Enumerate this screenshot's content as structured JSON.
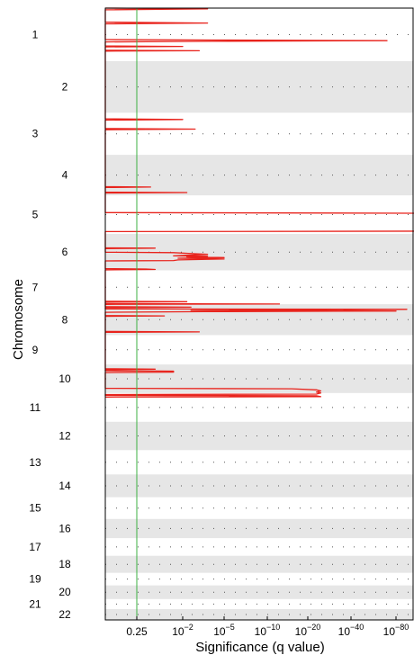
{
  "chart_data": {
    "type": "line",
    "orientation": "horizontal-genome",
    "xlabel": "Significance (q value)",
    "ylabel": "Chromosome",
    "threshold": {
      "value": 0.25,
      "label": "0.25",
      "color": "#3cb043"
    },
    "x_scale": "compressed-log",
    "x_ticks": [
      {
        "label": "0.25",
        "base": "0.25",
        "exp": ""
      },
      {
        "label": "10^-2",
        "base": "10",
        "exp": "−2"
      },
      {
        "label": "10^-5",
        "base": "10",
        "exp": "−5"
      },
      {
        "label": "10^-10",
        "base": "10",
        "exp": "−10"
      },
      {
        "label": "10^-20",
        "base": "10",
        "exp": "−20"
      },
      {
        "label": "10^-40",
        "base": "10",
        "exp": "−40"
      },
      {
        "label": "10^-80",
        "base": "10",
        "exp": "−80"
      }
    ],
    "chromosomes": [
      {
        "label": "1",
        "size": 24.9
      },
      {
        "label": "2",
        "size": 24.2
      },
      {
        "label": "3",
        "size": 19.8
      },
      {
        "label": "4",
        "size": 19.0
      },
      {
        "label": "5",
        "size": 18.1
      },
      {
        "label": "6",
        "size": 17.1
      },
      {
        "label": "7",
        "size": 15.9
      },
      {
        "label": "8",
        "size": 14.5
      },
      {
        "label": "9",
        "size": 13.8
      },
      {
        "label": "10",
        "size": 13.4
      },
      {
        "label": "11",
        "size": 13.5
      },
      {
        "label": "12",
        "size": 13.3
      },
      {
        "label": "13",
        "size": 11.4
      },
      {
        "label": "14",
        "size": 10.7
      },
      {
        "label": "15",
        "size": 10.2
      },
      {
        "label": "16",
        "size": 9.0
      },
      {
        "label": "17",
        "size": 8.3
      },
      {
        "label": "18",
        "size": 8.0
      },
      {
        "label": "19",
        "size": 5.9
      },
      {
        "label": "20",
        "size": 6.4
      },
      {
        "label": "21",
        "size": 4.7
      },
      {
        "label": "22",
        "size": 5.1
      }
    ],
    "series": [
      {
        "color": "#e8231c",
        "points": [
          [
            0,
            0.0
          ],
          [
            1.6,
            0.4
          ],
          [
            0,
            0.8
          ],
          [
            0,
            6.6
          ],
          [
            1.6,
            7.0
          ],
          [
            0,
            7.4
          ],
          [
            0,
            14.8
          ],
          [
            1.7,
            15.0
          ],
          [
            5.8,
            15.3
          ],
          [
            1.7,
            15.6
          ],
          [
            0,
            15.9
          ],
          [
            0,
            17.8
          ],
          [
            1.0,
            18.0
          ],
          [
            0,
            18.2
          ],
          [
            0,
            19.8
          ],
          [
            1.4,
            20.0
          ],
          [
            0,
            20.2
          ],
          [
            0,
            52.0
          ],
          [
            1.0,
            52.3
          ],
          [
            0,
            52.6
          ],
          [
            0,
            56.5
          ],
          [
            1.3,
            56.8
          ],
          [
            0,
            57.1
          ],
          [
            0,
            83.8
          ],
          [
            0.3,
            84.0
          ],
          [
            0,
            84.2
          ],
          [
            0,
            86.4
          ],
          [
            1.1,
            86.6
          ],
          [
            0,
            86.8
          ],
          [
            0,
            96.0
          ],
          [
            6.9,
            96.3
          ],
          [
            7.1,
            97.0
          ],
          [
            7.0,
            97.4
          ],
          [
            7.25,
            98.0
          ],
          [
            7.2,
            98.7
          ],
          [
            7.3,
            99.3
          ],
          [
            9.9,
            99.6
          ],
          [
            7.4,
            100.1
          ],
          [
            7.3,
            100.8
          ],
          [
            7.25,
            101.6
          ],
          [
            7.3,
            102.4
          ],
          [
            7.2,
            103.2
          ],
          [
            7.25,
            104.0
          ],
          [
            7.2,
            104.7
          ],
          [
            0,
            104.9
          ],
          [
            0,
            112.5
          ],
          [
            0.4,
            112.7
          ],
          [
            0,
            112.9
          ],
          [
            0,
            114.6
          ],
          [
            0.8,
            114.8
          ],
          [
            1.3,
            115.3
          ],
          [
            1.6,
            115.6
          ],
          [
            1.1,
            116.0
          ],
          [
            0.8,
            116.3
          ],
          [
            1.6,
            116.5
          ],
          [
            1.1,
            116.8
          ],
          [
            2.0,
            117.1
          ],
          [
            0.9,
            117.4
          ],
          [
            2.0,
            117.8
          ],
          [
            0.9,
            118.2
          ],
          [
            0.8,
            118.5
          ],
          [
            0,
            118.7
          ],
          [
            0,
            122.3
          ],
          [
            0.2,
            122.5
          ],
          [
            0.4,
            122.7
          ],
          [
            0,
            122.9
          ],
          [
            0,
            137.6
          ],
          [
            1.1,
            137.8
          ],
          [
            0,
            138.0
          ],
          [
            0,
            138.7
          ],
          [
            3.3,
            138.9
          ],
          [
            0,
            139.1
          ],
          [
            0,
            140.2
          ],
          [
            1.2,
            140.4
          ],
          [
            0,
            140.6
          ],
          [
            0,
            141.2
          ],
          [
            6.3,
            141.4
          ],
          [
            3.4,
            141.7
          ],
          [
            1.2,
            141.9
          ],
          [
            6.0,
            142.2
          ],
          [
            1.5,
            142.5
          ],
          [
            0,
            142.8
          ],
          [
            0,
            144.3
          ],
          [
            0.6,
            144.5
          ],
          [
            0,
            144.7
          ],
          [
            0,
            151.8
          ],
          [
            1.4,
            152.0
          ],
          [
            0,
            152.2
          ],
          [
            0,
            169.3
          ],
          [
            0.4,
            169.5
          ],
          [
            0,
            169.7
          ],
          [
            0,
            170.2
          ],
          [
            0.8,
            170.4
          ],
          [
            0.8,
            170.9
          ],
          [
            0,
            171.1
          ],
          [
            0,
            178.5
          ],
          [
            3.6,
            178.7
          ],
          [
            4.2,
            179.2
          ],
          [
            4.3,
            179.7
          ],
          [
            4.2,
            180.2
          ],
          [
            4.3,
            180.7
          ],
          [
            4.2,
            181.2
          ],
          [
            0,
            181.4
          ],
          [
            0,
            181.8
          ],
          [
            4.2,
            182.0
          ],
          [
            4.3,
            182.4
          ],
          [
            0,
            182.6
          ]
        ]
      }
    ]
  }
}
